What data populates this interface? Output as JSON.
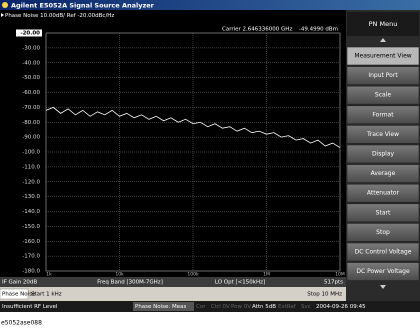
{
  "title_bar": "Agilent E5052A Signal Source Analyzer",
  "chart_data": {
    "type": "line",
    "header": "Phase Noise 10.00dB/ Ref -20.00dBc/Hz",
    "marker_text": [
      "Carrier 2.646336000 GHz",
      "-49.4990 dBm"
    ],
    "x": [
      1000,
      1259,
      1585,
      1995,
      2512,
      3162,
      3981,
      5012,
      6310,
      7943,
      10000,
      12589,
      15849,
      19953,
      25119,
      31623,
      39811,
      50119,
      63096,
      79433,
      100000,
      125893,
      158489,
      199526,
      251189,
      316228,
      398107,
      501187,
      630957,
      794328,
      1000000,
      1258925,
      1584893,
      1995262,
      2511886,
      3162278,
      3981072,
      5011872,
      6309573,
      7943282,
      10000000
    ],
    "series": [
      {
        "color": "#ffffff",
        "values": [
          -72,
          -70,
          -74,
          -71,
          -75,
          -72,
          -76,
          -73,
          -75,
          -72,
          -76,
          -74,
          -77,
          -75,
          -78,
          -76,
          -79,
          -77,
          -80,
          -78,
          -81,
          -80,
          -83,
          -81,
          -84,
          -83,
          -86,
          -84,
          -87,
          -86,
          -88,
          -87,
          -90,
          -89,
          -92,
          -91,
          -94,
          -92,
          -96,
          -94,
          -97
        ]
      }
    ],
    "xlim": [
      1000,
      10000000
    ],
    "log_x": true,
    "xticks": [
      {
        "value": 1000,
        "label": "1k"
      },
      {
        "value": 10000,
        "label": "10k"
      },
      {
        "value": 100000,
        "label": "100k"
      },
      {
        "value": 1000000,
        "label": "1M"
      },
      {
        "value": 10000000,
        "label": "10M"
      }
    ],
    "ylim": [
      -180,
      -20
    ],
    "yticks": [
      {
        "value": -20,
        "label": "-20.00"
      },
      {
        "value": -30,
        "label": "-30.00"
      },
      {
        "value": -40,
        "label": "-40.00"
      },
      {
        "value": -50,
        "label": "-50.00"
      },
      {
        "value": -60,
        "label": "-60.00"
      },
      {
        "value": -70,
        "label": "-70.00"
      },
      {
        "value": -80,
        "label": "-80.00"
      },
      {
        "value": -90,
        "label": "-90.00"
      },
      {
        "value": -100,
        "label": "-100.0"
      },
      {
        "value": -110,
        "label": "-110.0"
      },
      {
        "value": -120,
        "label": "-120.0"
      },
      {
        "value": -130,
        "label": "-130.0"
      },
      {
        "value": -140,
        "label": "-140.0"
      },
      {
        "value": -150,
        "label": "-150.0"
      },
      {
        "value": -160,
        "label": "-160.0"
      },
      {
        "value": -170,
        "label": "-170.0"
      },
      {
        "value": -180,
        "label": "-180.0"
      }
    ],
    "grid": true
  },
  "status": [
    "IF Gain 20dB",
    "Freq Band [300M-7GHz]",
    "LO Opt [<150kHz]",
    "517pts"
  ],
  "sweep": {
    "name": "Phase Noise",
    "start": "Start 1 kHz",
    "stop": "Stop 10 MHz"
  },
  "bottom_bar": [
    "Insufficient RF Level",
    "Phase Noise: Meas",
    "Cor",
    "Ctrl 0V",
    "Pow 0V",
    "Attn 5dB",
    "ExtRef",
    "Svc",
    "2004-09-26 09:45"
  ],
  "menu": {
    "title": "PN Menu",
    "items": [
      "Measurement View",
      "Input Port",
      "Scale",
      "Format",
      "Trace View",
      "Display",
      "Average",
      "Attenuator",
      "Start",
      "Stop",
      "DC Control Voltage",
      "DC Power Voltage"
    ]
  },
  "caption": "e5052ase088"
}
